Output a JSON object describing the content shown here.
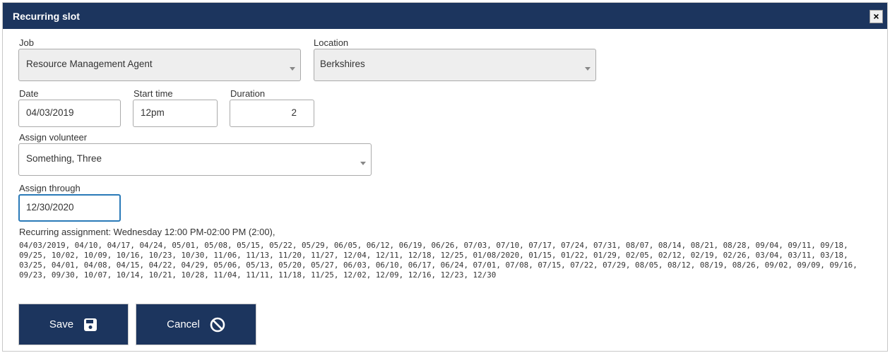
{
  "dialog": {
    "title": "Recurring slot",
    "close_label": "×"
  },
  "form": {
    "job": {
      "label": "Job",
      "value": "Resource Management Agent"
    },
    "location": {
      "label": "Location",
      "value": "Berkshires"
    },
    "date": {
      "label": "Date",
      "value": "04/03/2019"
    },
    "start_time": {
      "label": "Start time",
      "value": "12pm"
    },
    "duration": {
      "label": "Duration",
      "value": "2"
    },
    "volunteer": {
      "label": "Assign volunteer",
      "value": "Something, Three"
    },
    "assign_through": {
      "label": "Assign through",
      "value": "12/30/2020"
    }
  },
  "recurrence": {
    "summary": "Recurring assignment: Wednesday 12:00 PM-02:00 PM (2:00),",
    "date_lines": [
      "04/03/2019, 04/10, 04/17, 04/24, 05/01, 05/08, 05/15, 05/22, 05/29, 06/05, 06/12, 06/19, 06/26, 07/03, 07/10, 07/17, 07/24, 07/31, 08/07, 08/14, 08/21, 08/28, 09/04, 09/11, 09/18,",
      "09/25, 10/02, 10/09, 10/16, 10/23, 10/30, 11/06, 11/13, 11/20, 11/27, 12/04, 12/11, 12/18, 12/25, 01/08/2020, 01/15, 01/22, 01/29, 02/05, 02/12, 02/19, 02/26, 03/04, 03/11, 03/18,",
      "03/25, 04/01, 04/08, 04/15, 04/22, 04/29, 05/06, 05/13, 05/20, 05/27, 06/03, 06/10, 06/17, 06/24, 07/01, 07/08, 07/15, 07/22, 07/29, 08/05, 08/12, 08/19, 08/26, 09/02, 09/09, 09/16,",
      "09/23, 09/30, 10/07, 10/14, 10/21, 10/28, 11/04, 11/11, 11/18, 11/25, 12/02, 12/09, 12/16, 12/23, 12/30"
    ]
  },
  "actions": {
    "save": "Save",
    "cancel": "Cancel"
  },
  "colors": {
    "primary": "#1c355e",
    "focus": "#2a7ab8"
  }
}
